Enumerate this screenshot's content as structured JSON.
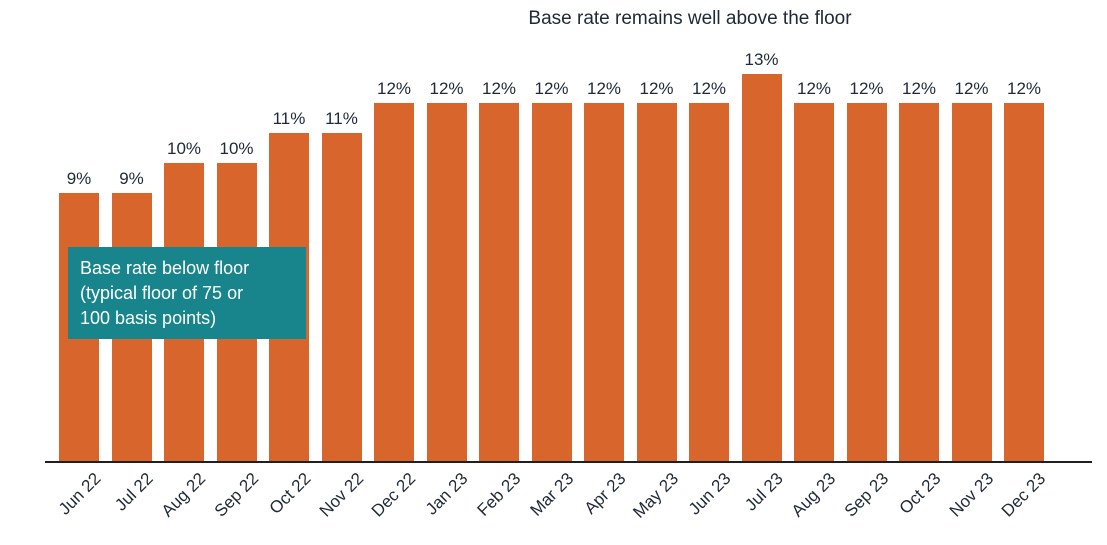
{
  "chart_data": {
    "type": "bar",
    "title": "Base rate remains well above the floor",
    "categories": [
      "Jun 22",
      "Jul 22",
      "Aug 22",
      "Sep 22",
      "Oct 22",
      "Nov 22",
      "Dec 22",
      "Jan 23",
      "Feb 23",
      "Mar 23",
      "Apr 23",
      "May 23",
      "Jun 23",
      "Jul 23",
      "Aug 23",
      "Sep 23",
      "Oct 23",
      "Nov 23",
      "Dec 23"
    ],
    "values": [
      9,
      9,
      10,
      10,
      11,
      11,
      12,
      12,
      12,
      12,
      12,
      12,
      12,
      13,
      12,
      12,
      12,
      12,
      12
    ],
    "value_suffix": "%",
    "ylim": [
      0,
      13
    ],
    "grid": false,
    "legend": "none",
    "xlabel": "",
    "ylabel": "",
    "bar_color": "#d7652c",
    "axis_color": "#231f20",
    "text_color": "#1f2937",
    "annotation": {
      "lines": [
        "Base rate below floor",
        "(typical floor of 75 or",
        "100 basis points)"
      ],
      "bg_color": "#17858b",
      "text_color": "#ffffff"
    }
  }
}
